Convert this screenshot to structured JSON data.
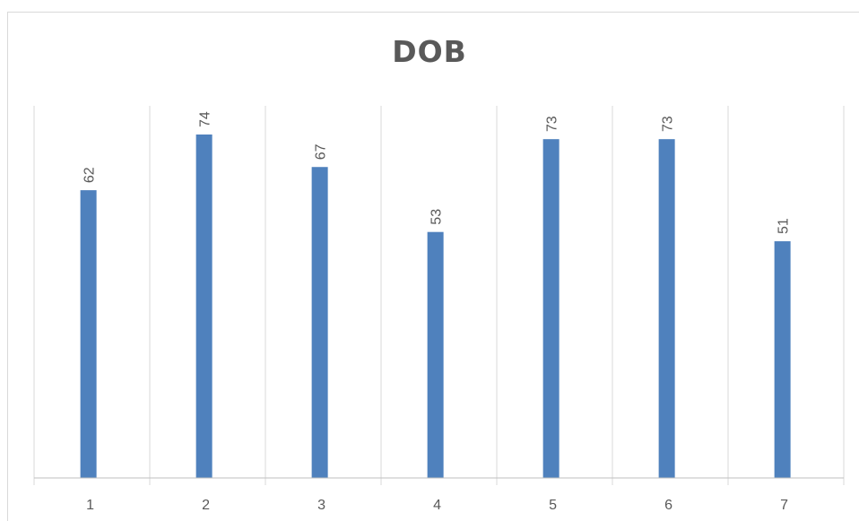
{
  "chart_data": {
    "type": "bar",
    "title": "DOB",
    "xlabel": "",
    "ylabel": "",
    "categories": [
      "1",
      "2",
      "3",
      "4",
      "5",
      "6",
      "7"
    ],
    "series": [
      {
        "values": [
          62,
          74,
          67,
          53,
          73,
          73,
          51
        ]
      }
    ],
    "ylim": [
      0,
      74
    ],
    "show_data_labels": true,
    "data_label_rotation": "vertical",
    "grid": "vertical-category-separators",
    "legend": "none",
    "colors": {
      "bar": "#4F81BD",
      "grid": "#d9d9d9",
      "axis": "#bfbfbf",
      "label": "#595959",
      "title": "#595959"
    }
  }
}
